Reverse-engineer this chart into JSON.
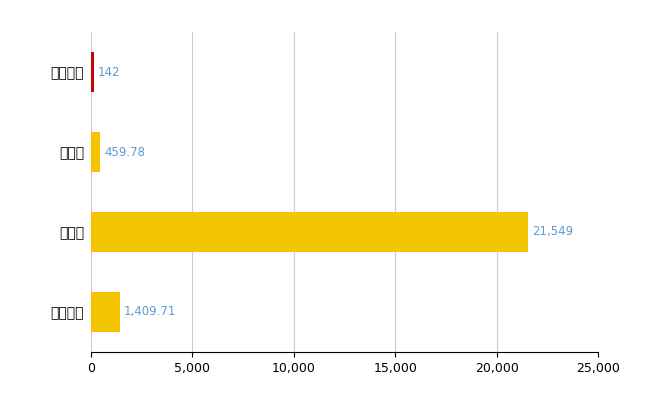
{
  "categories": [
    "むかわ町",
    "県平均",
    "県最大",
    "全国平均"
  ],
  "values": [
    142,
    459.78,
    21549,
    1409.71
  ],
  "bar_colors": [
    "#cc0000",
    "#f5c400",
    "#f5c400",
    "#f5c400"
  ],
  "labels": [
    "142",
    "459.78",
    "21,549",
    "1,409.71"
  ],
  "xlim": [
    0,
    25000
  ],
  "xticks": [
    0,
    5000,
    10000,
    15000,
    20000,
    25000
  ],
  "background_color": "#ffffff",
  "grid_color": "#cccccc",
  "label_color": "#5b9bd5"
}
